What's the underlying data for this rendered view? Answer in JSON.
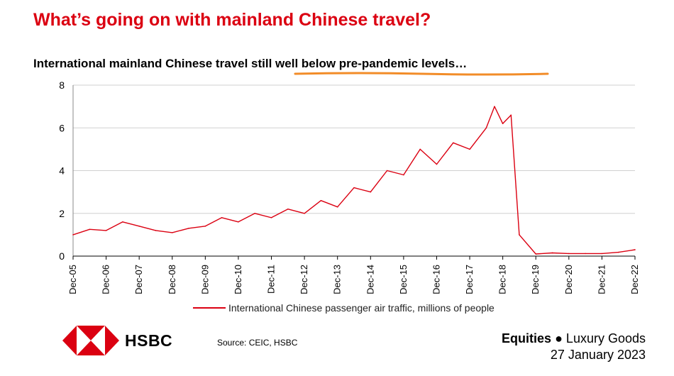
{
  "header": {
    "title": "What’s going on with mainland Chinese travel?",
    "subtitle_plain": "International mainland Chinese travel ",
    "subtitle_highlight": "still well below pre-pandemic levels…"
  },
  "colors": {
    "accent": "#db0011",
    "highlight_underline": "#f28c28"
  },
  "chart_data": {
    "type": "line",
    "ylim": [
      0,
      8
    ],
    "y_ticks": [
      "0",
      "2",
      "4",
      "6",
      "8"
    ],
    "x_tick_labels": [
      "Dec-05",
      "Dec-06",
      "Dec-07",
      "Dec-08",
      "Dec-09",
      "Dec-10",
      "Dec-11",
      "Dec-12",
      "Dec-13",
      "Dec-14",
      "Dec-15",
      "Dec-16",
      "Dec-17",
      "Dec-18",
      "Dec-19",
      "Dec-20",
      "Dec-21",
      "Dec-22"
    ],
    "grid": true,
    "legend_position": "bottom",
    "series": [
      {
        "name": "International Chinese passenger air traffic, millions of people",
        "points": [
          [
            "Dec-05",
            1.0
          ],
          [
            "Jun-06",
            1.25
          ],
          [
            "Dec-06",
            1.2
          ],
          [
            "Jun-07",
            1.6
          ],
          [
            "Dec-07",
            1.4
          ],
          [
            "Jun-08",
            1.2
          ],
          [
            "Dec-08",
            1.1
          ],
          [
            "Jun-09",
            1.3
          ],
          [
            "Dec-09",
            1.4
          ],
          [
            "Jun-10",
            1.8
          ],
          [
            "Dec-10",
            1.6
          ],
          [
            "Jun-11",
            2.0
          ],
          [
            "Dec-11",
            1.8
          ],
          [
            "Jun-12",
            2.2
          ],
          [
            "Dec-12",
            2.0
          ],
          [
            "Jun-13",
            2.6
          ],
          [
            "Dec-13",
            2.3
          ],
          [
            "Jun-14",
            3.2
          ],
          [
            "Dec-14",
            3.0
          ],
          [
            "Jun-15",
            4.0
          ],
          [
            "Dec-15",
            3.8
          ],
          [
            "Jun-16",
            5.0
          ],
          [
            "Dec-16",
            4.3
          ],
          [
            "Jun-17",
            5.3
          ],
          [
            "Dec-17",
            5.0
          ],
          [
            "Jun-18",
            6.0
          ],
          [
            "Sep-18",
            7.0
          ],
          [
            "Dec-18",
            6.2
          ],
          [
            "Mar-19",
            6.6
          ],
          [
            "Jun-19",
            1.0
          ],
          [
            "Dec-19",
            0.1
          ],
          [
            "Jun-20",
            0.15
          ],
          [
            "Dec-20",
            0.12
          ],
          [
            "Jun-21",
            0.12
          ],
          [
            "Dec-21",
            0.12
          ],
          [
            "Jun-22",
            0.18
          ],
          [
            "Dec-22",
            0.3
          ]
        ]
      }
    ]
  },
  "footer": {
    "brand": "HSBC",
    "source": "Source: CEIC, HSBC",
    "category_bold": "Equities",
    "category_rest": " ● Luxury Goods",
    "date": "27 January 2023"
  }
}
